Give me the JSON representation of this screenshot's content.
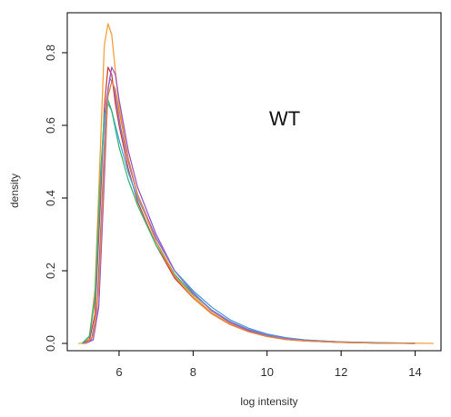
{
  "chart_data": {
    "type": "line",
    "title": "",
    "xlabel": "log intensity",
    "ylabel": "density",
    "xlim": [
      4.6,
      14.7
    ],
    "ylim": [
      -0.02,
      0.91
    ],
    "xticks": [
      6,
      8,
      10,
      12,
      14
    ],
    "yticks": [
      0.0,
      0.2,
      0.4,
      0.6,
      0.8
    ],
    "annotation": "WT",
    "grid": false,
    "series": [
      {
        "color": "#f7a03c",
        "points": [
          [
            4.9,
            0.0
          ],
          [
            5.1,
            0.0
          ],
          [
            5.2,
            0.02
          ],
          [
            5.35,
            0.15
          ],
          [
            5.5,
            0.55
          ],
          [
            5.6,
            0.82
          ],
          [
            5.7,
            0.88
          ],
          [
            5.8,
            0.85
          ],
          [
            5.9,
            0.75
          ],
          [
            6.0,
            0.66
          ],
          [
            6.25,
            0.5
          ],
          [
            6.5,
            0.41
          ],
          [
            7.0,
            0.28
          ],
          [
            7.5,
            0.19
          ],
          [
            8.0,
            0.13
          ],
          [
            8.5,
            0.085
          ],
          [
            9.0,
            0.055
          ],
          [
            9.5,
            0.035
          ],
          [
            10.0,
            0.02
          ],
          [
            10.5,
            0.012
          ],
          [
            11.0,
            0.008
          ],
          [
            12.0,
            0.004
          ],
          [
            13.0,
            0.002
          ],
          [
            14.5,
            0.0
          ]
        ]
      },
      {
        "color": "#d04030",
        "points": [
          [
            5.0,
            0.0
          ],
          [
            5.2,
            0.01
          ],
          [
            5.35,
            0.08
          ],
          [
            5.5,
            0.4
          ],
          [
            5.6,
            0.65
          ],
          [
            5.7,
            0.76
          ],
          [
            5.8,
            0.74
          ],
          [
            5.9,
            0.66
          ],
          [
            6.0,
            0.6
          ],
          [
            6.25,
            0.48
          ],
          [
            6.5,
            0.39
          ],
          [
            7.0,
            0.27
          ],
          [
            7.5,
            0.18
          ],
          [
            8.0,
            0.125
          ],
          [
            8.5,
            0.082
          ],
          [
            9.0,
            0.052
          ],
          [
            9.5,
            0.033
          ],
          [
            10.0,
            0.019
          ],
          [
            10.5,
            0.011
          ],
          [
            11.0,
            0.007
          ],
          [
            12.0,
            0.003
          ],
          [
            13.0,
            0.001
          ],
          [
            14.0,
            0.0
          ]
        ]
      },
      {
        "color": "#9b59c8",
        "points": [
          [
            5.1,
            0.0
          ],
          [
            5.3,
            0.01
          ],
          [
            5.45,
            0.1
          ],
          [
            5.6,
            0.45
          ],
          [
            5.7,
            0.7
          ],
          [
            5.8,
            0.76
          ],
          [
            5.9,
            0.74
          ],
          [
            6.0,
            0.67
          ],
          [
            6.25,
            0.53
          ],
          [
            6.5,
            0.43
          ],
          [
            7.0,
            0.3
          ],
          [
            7.5,
            0.2
          ],
          [
            8.0,
            0.14
          ],
          [
            8.5,
            0.09
          ],
          [
            9.0,
            0.058
          ],
          [
            9.5,
            0.036
          ],
          [
            10.0,
            0.022
          ],
          [
            10.5,
            0.013
          ],
          [
            11.0,
            0.008
          ],
          [
            12.0,
            0.003
          ],
          [
            13.0,
            0.001
          ],
          [
            14.0,
            0.0
          ]
        ]
      },
      {
        "color": "#4aa0e0",
        "points": [
          [
            5.0,
            0.0
          ],
          [
            5.2,
            0.02
          ],
          [
            5.35,
            0.12
          ],
          [
            5.5,
            0.45
          ],
          [
            5.6,
            0.62
          ],
          [
            5.7,
            0.66
          ],
          [
            5.8,
            0.64
          ],
          [
            5.9,
            0.6
          ],
          [
            6.0,
            0.56
          ],
          [
            6.25,
            0.47
          ],
          [
            6.5,
            0.4
          ],
          [
            7.0,
            0.29
          ],
          [
            7.5,
            0.2
          ],
          [
            8.0,
            0.145
          ],
          [
            8.5,
            0.1
          ],
          [
            9.0,
            0.065
          ],
          [
            9.5,
            0.042
          ],
          [
            10.0,
            0.026
          ],
          [
            10.5,
            0.016
          ],
          [
            11.0,
            0.01
          ],
          [
            12.0,
            0.004
          ],
          [
            13.0,
            0.002
          ],
          [
            14.0,
            0.0
          ]
        ]
      },
      {
        "color": "#3cb878",
        "points": [
          [
            5.0,
            0.0
          ],
          [
            5.2,
            0.02
          ],
          [
            5.35,
            0.13
          ],
          [
            5.5,
            0.47
          ],
          [
            5.6,
            0.63
          ],
          [
            5.7,
            0.67
          ],
          [
            5.8,
            0.64
          ],
          [
            5.9,
            0.59
          ],
          [
            6.0,
            0.54
          ],
          [
            6.25,
            0.45
          ],
          [
            6.5,
            0.38
          ],
          [
            7.0,
            0.27
          ],
          [
            7.5,
            0.19
          ],
          [
            8.0,
            0.135
          ],
          [
            8.5,
            0.092
          ],
          [
            9.0,
            0.06
          ],
          [
            9.5,
            0.038
          ],
          [
            10.0,
            0.023
          ],
          [
            10.5,
            0.014
          ],
          [
            11.0,
            0.009
          ],
          [
            12.0,
            0.004
          ],
          [
            13.0,
            0.001
          ],
          [
            14.0,
            0.0
          ]
        ]
      },
      {
        "color": "#8a6fd0",
        "points": [
          [
            5.05,
            0.0
          ],
          [
            5.25,
            0.01
          ],
          [
            5.4,
            0.09
          ],
          [
            5.55,
            0.42
          ],
          [
            5.65,
            0.66
          ],
          [
            5.75,
            0.73
          ],
          [
            5.85,
            0.71
          ],
          [
            5.95,
            0.65
          ],
          [
            6.05,
            0.59
          ],
          [
            6.3,
            0.48
          ],
          [
            6.5,
            0.41
          ],
          [
            7.0,
            0.29
          ],
          [
            7.5,
            0.2
          ],
          [
            8.0,
            0.138
          ],
          [
            8.5,
            0.092
          ],
          [
            9.0,
            0.06
          ],
          [
            9.5,
            0.038
          ],
          [
            10.0,
            0.023
          ],
          [
            10.5,
            0.014
          ],
          [
            11.0,
            0.009
          ],
          [
            12.0,
            0.004
          ],
          [
            13.0,
            0.001
          ],
          [
            14.0,
            0.0
          ]
        ]
      },
      {
        "color": "#e8873a",
        "points": [
          [
            5.1,
            0.0
          ],
          [
            5.3,
            0.02
          ],
          [
            5.45,
            0.15
          ],
          [
            5.6,
            0.5
          ],
          [
            5.7,
            0.68
          ],
          [
            5.8,
            0.72
          ],
          [
            5.9,
            0.7
          ],
          [
            6.0,
            0.64
          ],
          [
            6.25,
            0.51
          ],
          [
            6.5,
            0.41
          ],
          [
            7.0,
            0.28
          ],
          [
            7.5,
            0.185
          ],
          [
            8.0,
            0.125
          ],
          [
            8.5,
            0.082
          ],
          [
            9.0,
            0.052
          ],
          [
            9.5,
            0.032
          ],
          [
            10.0,
            0.019
          ],
          [
            10.5,
            0.011
          ],
          [
            11.0,
            0.007
          ],
          [
            12.0,
            0.003
          ],
          [
            13.0,
            0.001
          ],
          [
            14.0,
            0.0
          ]
        ]
      }
    ]
  }
}
